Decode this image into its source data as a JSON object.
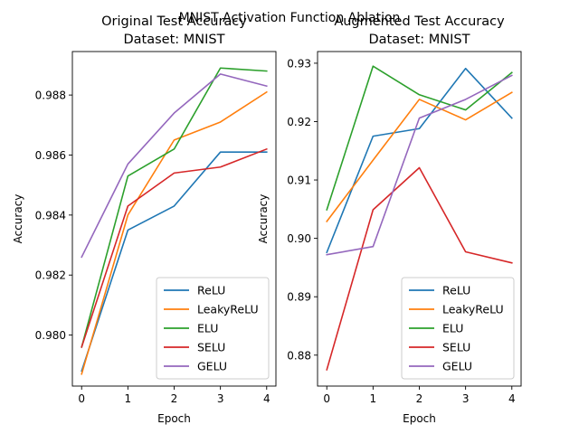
{
  "figure": {
    "suptitle": "MNIST Activation Function Ablation"
  },
  "chart_data": [
    {
      "type": "line",
      "title": "Original Test Accuracy\nDataset: MNIST",
      "xlabel": "Epoch",
      "ylabel": "Accuracy",
      "x": [
        0,
        1,
        2,
        3,
        4
      ],
      "xlim": [
        -0.2,
        4.2
      ],
      "ylim": [
        0.9783,
        0.98945
      ],
      "yticks": [
        0.98,
        0.982,
        0.984,
        0.986,
        0.988
      ],
      "ytick_labels": [
        "0.980",
        "0.982",
        "0.984",
        "0.986",
        "0.988"
      ],
      "xticks": [
        0,
        1,
        2,
        3,
        4
      ],
      "grid": false,
      "legend_loc": "lower right",
      "series": [
        {
          "name": "ReLU",
          "color": "#1f77b4",
          "values": [
            0.9788,
            0.9835,
            0.9843,
            0.9861,
            0.9861
          ]
        },
        {
          "name": "LeakyReLU",
          "color": "#ff7f0e",
          "values": [
            0.9787,
            0.984,
            0.9865,
            0.9871,
            0.9881
          ]
        },
        {
          "name": "ELU",
          "color": "#2ca02c",
          "values": [
            0.9796,
            0.9853,
            0.9862,
            0.9889,
            0.9888
          ]
        },
        {
          "name": "SELU",
          "color": "#d62728",
          "values": [
            0.9796,
            0.9843,
            0.9854,
            0.9856,
            0.9862
          ]
        },
        {
          "name": "GELU",
          "color": "#9467bd",
          "values": [
            0.9826,
            0.9857,
            0.9874,
            0.9887,
            0.9883
          ]
        }
      ]
    },
    {
      "type": "line",
      "title": "Augmented Test Accuracy\nDataset: MNIST",
      "xlabel": "Epoch",
      "ylabel": "Accuracy",
      "x": [
        0,
        1,
        2,
        3,
        4
      ],
      "xlim": [
        -0.2,
        4.2
      ],
      "ylim": [
        0.8747,
        0.932
      ],
      "yticks": [
        0.88,
        0.89,
        0.9,
        0.91,
        0.92,
        0.93
      ],
      "ytick_labels": [
        "0.88",
        "0.89",
        "0.90",
        "0.91",
        "0.92",
        "0.93"
      ],
      "xticks": [
        0,
        1,
        2,
        3,
        4
      ],
      "grid": false,
      "legend_loc": "lower right",
      "series": [
        {
          "name": "ReLU",
          "color": "#1f77b4",
          "values": [
            0.8976,
            0.9175,
            0.9188,
            0.9291,
            0.9206
          ]
        },
        {
          "name": "LeakyReLU",
          "color": "#ff7f0e",
          "values": [
            0.9029,
            0.9134,
            0.9238,
            0.9203,
            0.925
          ]
        },
        {
          "name": "ELU",
          "color": "#2ca02c",
          "values": [
            0.9049,
            0.9295,
            0.9246,
            0.922,
            0.9284
          ]
        },
        {
          "name": "SELU",
          "color": "#d62728",
          "values": [
            0.8775,
            0.9049,
            0.9121,
            0.8977,
            0.8958
          ]
        },
        {
          "name": "GELU",
          "color": "#9467bd",
          "values": [
            0.8972,
            0.8986,
            0.9206,
            0.9238,
            0.9279
          ]
        }
      ]
    }
  ]
}
